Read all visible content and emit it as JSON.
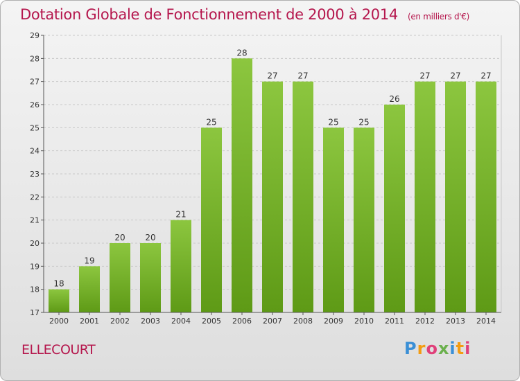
{
  "header": {
    "title": "Dotation Globale de Fonctionnement de 2000 à 2014",
    "subtitle": "(en milliers d'€)"
  },
  "footer": {
    "commune": "ELLECOURT",
    "logo": {
      "letters": [
        "P",
        "r",
        "o",
        "x",
        "i",
        "t",
        "i"
      ],
      "colors": [
        "#3a8fd6",
        "#f39c12",
        "#e0407a",
        "#6ab04c",
        "#3a8fd6",
        "#f39c12",
        "#e0407a"
      ]
    }
  },
  "chart_data": {
    "type": "bar",
    "categories": [
      "2000",
      "2001",
      "2002",
      "2003",
      "2004",
      "2005",
      "2006",
      "2007",
      "2008",
      "2009",
      "2010",
      "2011",
      "2012",
      "2013",
      "2014"
    ],
    "values": [
      18,
      19,
      20,
      20,
      21,
      25,
      28,
      27,
      27,
      25,
      25,
      26,
      27,
      27,
      27
    ],
    "ylim": [
      17,
      29
    ],
    "yticks": [
      17,
      18,
      19,
      20,
      21,
      22,
      23,
      24,
      25,
      26,
      27,
      28,
      29
    ],
    "grid": true,
    "bar_color": "#8cc63f",
    "bar_color_dark": "#5e9a16"
  }
}
